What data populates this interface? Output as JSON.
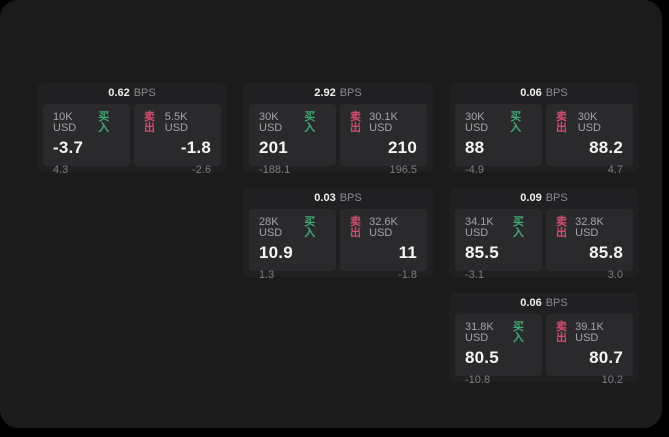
{
  "labels": {
    "buy": "买入",
    "sell": "卖出",
    "bps_unit": "BPS"
  },
  "colors": {
    "buy": "#41a873",
    "sell": "#d14d70",
    "page_bg": "#1b1b1c",
    "card_bg": "#202022",
    "tile_bg": "#2a2a2c"
  },
  "cards": [
    {
      "bps": "0.62",
      "buy": {
        "amount": "10K USD",
        "price": "-3.7",
        "sub": "4.3"
      },
      "sell": {
        "amount": "5.5K USD",
        "price": "-1.8",
        "sub": "-2.6"
      }
    },
    {
      "bps": "2.92",
      "buy": {
        "amount": "30K USD",
        "price": "201",
        "sub": "-188.1"
      },
      "sell": {
        "amount": "30.1K USD",
        "price": "210",
        "sub": "196.5"
      }
    },
    {
      "bps": "0.06",
      "buy": {
        "amount": "30K USD",
        "price": "88",
        "sub": "-4.9"
      },
      "sell": {
        "amount": "30K USD",
        "price": "88.2",
        "sub": "4.7"
      }
    },
    {
      "bps": "0.03",
      "buy": {
        "amount": "28K USD",
        "price": "10.9",
        "sub": "1.3"
      },
      "sell": {
        "amount": "32.6K USD",
        "price": "11",
        "sub": "-1.8"
      }
    },
    {
      "bps": "0.09",
      "buy": {
        "amount": "34.1K USD",
        "price": "85.5",
        "sub": "-3.1"
      },
      "sell": {
        "amount": "32.8K USD",
        "price": "85.8",
        "sub": "3.0"
      }
    },
    {
      "bps": "0.06",
      "buy": {
        "amount": "31.8K USD",
        "price": "80.5",
        "sub": "-10.8"
      },
      "sell": {
        "amount": "39.1K USD",
        "price": "80.7",
        "sub": "10.2"
      }
    }
  ]
}
